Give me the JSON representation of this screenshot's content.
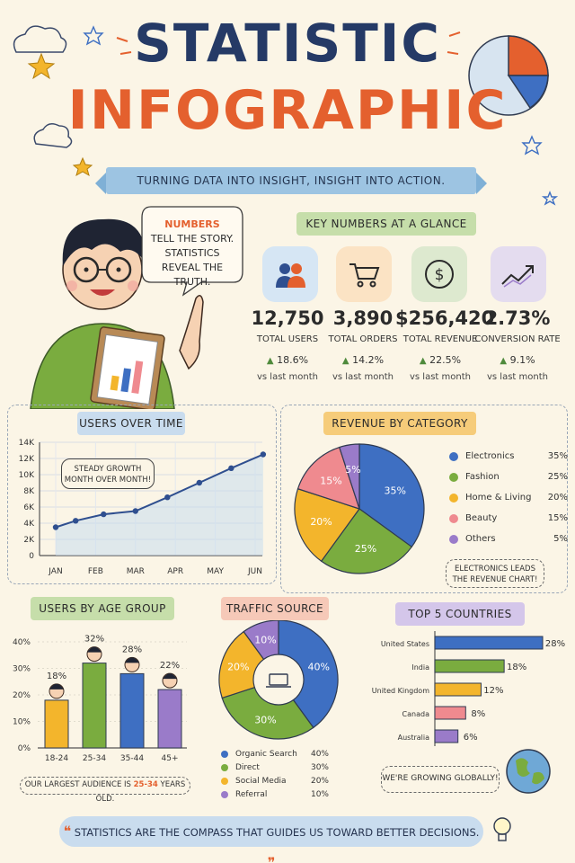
{
  "header": {
    "title_line1": "STATISTIC",
    "title_line2": "INFOGRAPHIC",
    "tagline": "TURNING DATA INTO INSIGHT, INSIGHT INTO ACTION."
  },
  "speech": {
    "line1": "NUMBERS",
    "line2": "TELL THE STORY.",
    "line3": "STATISTICS",
    "line4": "REVEAL THE TRUTH."
  },
  "key_numbers": {
    "title": "KEY NUMBERS AT A GLANCE",
    "items": [
      {
        "icon": "users-icon",
        "value": "12,750",
        "label": "TOTAL USERS",
        "change": "18.6%",
        "sub": "vs last month",
        "color": "#2f4f8f",
        "bg": "#d6e6f4"
      },
      {
        "icon": "cart-icon",
        "value": "3,890",
        "label": "TOTAL ORDERS",
        "change": "14.2%",
        "sub": "vs last month",
        "color": "#e4602e",
        "bg": "#fbe3c4"
      },
      {
        "icon": "dollar-icon",
        "value": "$256,420",
        "label": "TOTAL REVENUE",
        "change": "22.5%",
        "sub": "vs last month",
        "color": "#4f8a3c",
        "bg": "#dde9cf"
      },
      {
        "icon": "trend-icon",
        "value": "2.73%",
        "label": "CONVERSION RATE",
        "change": "9.1%",
        "sub": "vs last month",
        "color": "#6b4aa0",
        "bg": "#e4dcef"
      }
    ]
  },
  "chart_data": [
    {
      "type": "line",
      "title": "USERS OVER TIME",
      "annotation": "STEADY GROWTH MONTH OVER MONTH!",
      "x_ticks": [
        "JAN",
        "FEB",
        "MAR",
        "APR",
        "MAY",
        "JUN"
      ],
      "y_ticks": [
        "0",
        "2K",
        "4K",
        "6K",
        "8K",
        "10K",
        "12K",
        "14K"
      ],
      "ylim": [
        0,
        14000
      ],
      "points": [
        {
          "x": 0,
          "y": 3500
        },
        {
          "x": 0.5,
          "y": 4300
        },
        {
          "x": 1.2,
          "y": 5100
        },
        {
          "x": 2.0,
          "y": 5500
        },
        {
          "x": 2.8,
          "y": 7200
        },
        {
          "x": 3.6,
          "y": 9000
        },
        {
          "x": 4.4,
          "y": 10800
        },
        {
          "x": 5.2,
          "y": 12500
        }
      ],
      "color": "#2f4f8f"
    },
    {
      "type": "pie",
      "title": "REVENUE BY CATEGORY",
      "slices": [
        {
          "name": "Electronics",
          "value": 35,
          "label": "35%",
          "color": "#3e6fc2"
        },
        {
          "name": "Fashion",
          "value": 25,
          "label": "25%",
          "color": "#7aac3f"
        },
        {
          "name": "Home & Living",
          "value": 20,
          "label": "20%",
          "color": "#f3b52c"
        },
        {
          "name": "Beauty",
          "value": 15,
          "label": "15%",
          "color": "#ef8a8f"
        },
        {
          "name": "Others",
          "value": 5,
          "label": "5%",
          "color": "#9a7bc9"
        }
      ],
      "note": "ELECTRONICS LEADS THE REVENUE CHART!"
    },
    {
      "type": "bar",
      "title": "USERS BY AGE GROUP",
      "categories": [
        "18-24",
        "25-34",
        "35-44",
        "45+"
      ],
      "values": [
        18,
        32,
        28,
        22
      ],
      "labels": [
        "18%",
        "32%",
        "28%",
        "22%"
      ],
      "colors": [
        "#f3b52c",
        "#7aac3f",
        "#3e6fc2",
        "#9a7bc9"
      ],
      "y_ticks": [
        "0%",
        "10%",
        "20%",
        "30%",
        "40%"
      ],
      "ylim": [
        0,
        40
      ],
      "note_prefix": "OUR LARGEST AUDIENCE IS ",
      "note_highlight": "25-34",
      "note_suffix": " YEARS OLD."
    },
    {
      "type": "pie",
      "title": "TRAFFIC SOURCE",
      "slices": [
        {
          "name": "Organic Search",
          "value": 40,
          "label": "40%",
          "color": "#3e6fc2"
        },
        {
          "name": "Direct",
          "value": 30,
          "label": "30%",
          "color": "#7aac3f"
        },
        {
          "name": "Social Media",
          "value": 20,
          "label": "20%",
          "color": "#f3b52c"
        },
        {
          "name": "Referral",
          "value": 10,
          "label": "10%",
          "color": "#9a7bc9"
        }
      ]
    },
    {
      "type": "bar",
      "orientation": "horizontal",
      "title": "TOP 5 COUNTRIES",
      "categories": [
        "United States",
        "India",
        "United Kingdom",
        "Canada",
        "Australia"
      ],
      "values": [
        28,
        18,
        12,
        8,
        6
      ],
      "labels": [
        "28%",
        "18%",
        "12%",
        "8%",
        "6%"
      ],
      "colors": [
        "#3e6fc2",
        "#7aac3f",
        "#f3b52c",
        "#ef8a8f",
        "#9a7bc9"
      ],
      "xlim": [
        0,
        28
      ],
      "note": "WE'RE GROWING GLOBALLY!"
    }
  ],
  "quote": {
    "open": "❝",
    "text": "STATISTICS ARE THE COMPASS THAT GUIDES US TOWARD BETTER DECISIONS.",
    "close": "❞"
  }
}
